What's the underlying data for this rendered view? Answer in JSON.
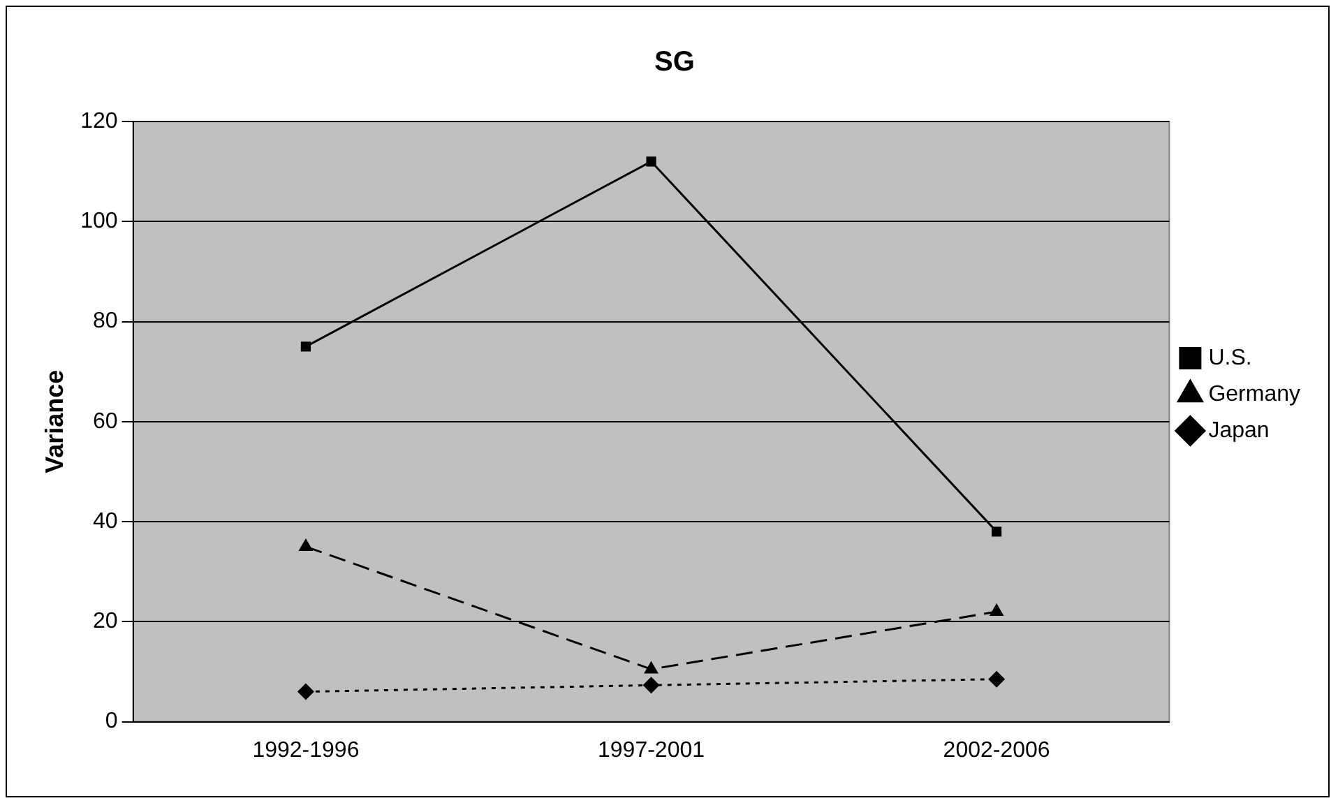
{
  "chart_data": {
    "type": "line",
    "title": "SG",
    "ylabel": "Variance",
    "categories": [
      "1992-1996",
      "1997-2001",
      "2002-2006"
    ],
    "series": [
      {
        "name": "U.S.",
        "color": "#000000",
        "values": [
          75,
          112,
          38
        ],
        "marker": "square",
        "line_style": "solid"
      },
      {
        "name": "Germany",
        "color": "#000000",
        "values": [
          35,
          10.5,
          22
        ],
        "marker": "triangle",
        "line_style": "dashed"
      },
      {
        "name": "Japan",
        "color": "#000000",
        "values": [
          6,
          7.3,
          8.5
        ],
        "marker": "diamond",
        "line_style": "dotted"
      }
    ],
    "ylim": [
      0,
      120
    ],
    "yticks": [
      0,
      20,
      40,
      60,
      80,
      100,
      120
    ],
    "grid": "y",
    "legend": "right"
  }
}
